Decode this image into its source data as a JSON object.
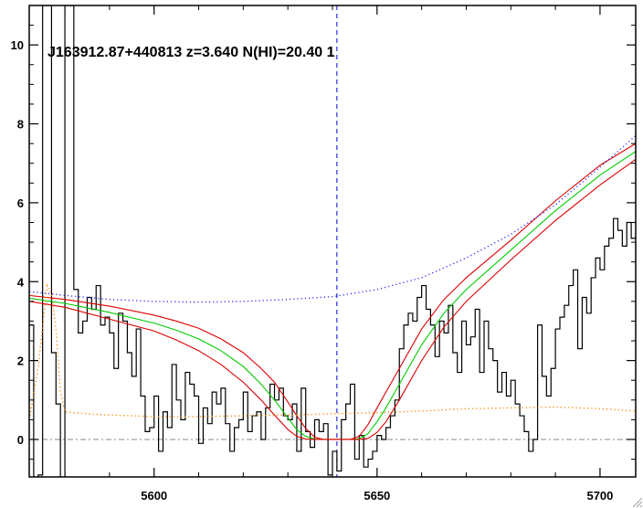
{
  "chart_data": {
    "type": "line",
    "title": "J163912.87+440813 z=3.640 N(HI)=20.40 1",
    "xlabel": "",
    "ylabel": "",
    "xlim": [
      5572,
      5708
    ],
    "ylim": [
      -0.95,
      11
    ],
    "x_ticks": [
      5600,
      5650,
      5700
    ],
    "x_tick_labels": [
      "5600",
      "5650",
      "5700"
    ],
    "y_ticks": [
      0,
      2,
      4,
      6,
      8,
      10
    ],
    "y_tick_labels": [
      "0",
      "2",
      "4",
      "6",
      "8",
      "10"
    ],
    "grid": false,
    "legend": "none",
    "vertical_marker_x": 5641,
    "zero_line_y": 0,
    "series": [
      {
        "style": "steps",
        "color": "#000000",
        "x": [
          5572,
          5573,
          5574,
          5575,
          5576,
          5577,
          5578,
          5579,
          5580,
          5581,
          5582,
          5583,
          5584,
          5585,
          5586,
          5587,
          5588,
          5589,
          5590,
          5591,
          5592,
          5593,
          5594,
          5595,
          5596,
          5597,
          5598,
          5599,
          5600,
          5601,
          5602,
          5603,
          5604,
          5605,
          5606,
          5607,
          5608,
          5609,
          5610,
          5611,
          5612,
          5613,
          5614,
          5615,
          5616,
          5617,
          5618,
          5619,
          5620,
          5621,
          5622,
          5623,
          5624,
          5625,
          5626,
          5627,
          5628,
          5629,
          5630,
          5631,
          5632,
          5633,
          5634,
          5635,
          5636,
          5637,
          5638,
          5639,
          5640,
          5641,
          5642,
          5643,
          5644,
          5645,
          5646,
          5647,
          5648,
          5649,
          5650,
          5651,
          5652,
          5653,
          5654,
          5655,
          5656,
          5657,
          5658,
          5659,
          5660,
          5661,
          5662,
          5663,
          5664,
          5665,
          5666,
          5667,
          5668,
          5669,
          5670,
          5671,
          5672,
          5673,
          5674,
          5675,
          5676,
          5677,
          5678,
          5679,
          5680,
          5681,
          5682,
          5683,
          5684,
          5685,
          5686,
          5687,
          5688,
          5689,
          5690,
          5691,
          5692,
          5693,
          5694,
          5695,
          5696,
          5697,
          5698,
          5699,
          5700,
          5701,
          5702,
          5703,
          5704,
          5705,
          5706,
          5707
        ],
        "y": [
          2.9,
          -1.0,
          -0.9,
          11,
          11,
          2.2,
          0.9,
          -1.0,
          11,
          11,
          3.8,
          2.7,
          3.0,
          3.6,
          3.3,
          3.9,
          2.9,
          3.1,
          2.7,
          1.8,
          3.2,
          3.0,
          2.2,
          1.6,
          2.8,
          1.1,
          0.2,
          0.3,
          1.1,
          -0.3,
          0.7,
          0.3,
          1.9,
          1.0,
          0.5,
          1.7,
          1.4,
          1.1,
          -0.1,
          0.8,
          0.4,
          1.2,
          0.9,
          1.3,
          0.4,
          -0.3,
          0.3,
          0.5,
          1.2,
          0.2,
          0.6,
          0.7,
          0.0,
          0.8,
          1.4,
          1.0,
          1.3,
          0.6,
          0.5,
          0.9,
          -0.3,
          1.3,
          0.2,
          -0.2,
          0.5,
          0.2,
          0.4,
          -0.9,
          -0.3,
          -0.8,
          0.5,
          0.9,
          1.4,
          -0.5,
          0.1,
          -0.7,
          -0.5,
          -0.3,
          0.1,
          0.0,
          0.3,
          0.6,
          1.0,
          2.3,
          2.9,
          3.2,
          3.0,
          3.6,
          3.9,
          3.3,
          2.9,
          2.1,
          3.0,
          2.7,
          3.4,
          2.2,
          1.7,
          3.0,
          2.4,
          2.6,
          3.3,
          1.7,
          3.0,
          2.3,
          2.0,
          1.2,
          1.7,
          1.1,
          1.5,
          0.9,
          0.6,
          0.2,
          -0.3,
          0.0,
          2.9,
          1.6,
          1.1,
          1.8,
          2.8,
          3.1,
          3.4,
          3.9,
          4.3,
          2.3,
          3.6,
          3.2,
          4.1,
          4.6,
          4.3,
          4.9,
          5.1,
          5.6,
          5.3,
          4.9,
          5.5,
          5.1
        ]
      },
      {
        "style": "solid",
        "color": "#00cc00",
        "x": [
          5572,
          5580,
          5590,
          5600,
          5605,
          5610,
          5615,
          5620,
          5624,
          5627,
          5630,
          5632,
          5634,
          5636,
          5638,
          5640,
          5642,
          5644,
          5646,
          5648,
          5650,
          5652,
          5655,
          5660,
          5665,
          5670,
          5680,
          5690,
          5700,
          5708
        ],
        "y": [
          3.58,
          3.45,
          3.22,
          2.95,
          2.77,
          2.55,
          2.25,
          1.85,
          1.4,
          1.0,
          0.55,
          0.25,
          0.08,
          0.01,
          0.0,
          0.0,
          0.0,
          0.0,
          0.02,
          0.15,
          0.45,
          0.8,
          1.4,
          2.4,
          3.2,
          3.8,
          4.8,
          5.8,
          6.7,
          7.3
        ]
      },
      {
        "style": "solid",
        "color": "#dd0000",
        "x": [
          5572,
          5580,
          5590,
          5600,
          5605,
          5610,
          5615,
          5620,
          5624,
          5627,
          5630,
          5632,
          5634,
          5636,
          5638,
          5640,
          5642,
          5644,
          5646,
          5648,
          5650,
          5652,
          5655,
          5660,
          5665,
          5670,
          5680,
          5690,
          5700,
          5708
        ],
        "y": [
          3.65,
          3.55,
          3.38,
          3.15,
          3.0,
          2.82,
          2.55,
          2.2,
          1.8,
          1.45,
          0.95,
          0.6,
          0.28,
          0.06,
          0.0,
          0.0,
          0.0,
          0.0,
          0.08,
          0.38,
          0.8,
          1.2,
          1.8,
          2.8,
          3.55,
          4.1,
          5.05,
          6.05,
          6.95,
          7.5
        ]
      },
      {
        "style": "solid",
        "color": "#dd0000",
        "x": [
          5572,
          5580,
          5590,
          5600,
          5605,
          5610,
          5615,
          5620,
          5624,
          5627,
          5630,
          5632,
          5634,
          5636,
          5638,
          5640,
          5642,
          5644,
          5646,
          5648,
          5650,
          5652,
          5655,
          5660,
          5665,
          5670,
          5680,
          5690,
          5700,
          5708
        ],
        "y": [
          3.5,
          3.35,
          3.05,
          2.75,
          2.52,
          2.25,
          1.9,
          1.45,
          1.0,
          0.62,
          0.25,
          0.08,
          0.01,
          0.0,
          0.0,
          0.0,
          0.0,
          0.0,
          0.0,
          0.03,
          0.18,
          0.45,
          1.0,
          2.0,
          2.85,
          3.5,
          4.55,
          5.55,
          6.45,
          7.1
        ]
      },
      {
        "style": "dotted",
        "color": "#3333ff",
        "x": [
          5572,
          5580,
          5590,
          5600,
          5610,
          5620,
          5630,
          5640,
          5650,
          5660,
          5670,
          5680,
          5690,
          5700,
          5708
        ],
        "y": [
          3.75,
          3.65,
          3.55,
          3.5,
          3.48,
          3.5,
          3.55,
          3.62,
          3.8,
          4.1,
          4.6,
          5.2,
          5.95,
          6.9,
          7.7
        ]
      },
      {
        "style": "dotted",
        "color": "#ff8800",
        "x": [
          5572,
          5574,
          5576,
          5577,
          5578,
          5579,
          5580,
          5585,
          5590,
          5600,
          5610,
          5620,
          5630,
          5640,
          5650,
          5660,
          5670,
          5680,
          5690,
          5700,
          5708
        ],
        "y": [
          0.5,
          1.8,
          3.9,
          3.7,
          2.8,
          1.2,
          0.7,
          0.65,
          0.62,
          0.58,
          0.58,
          0.6,
          0.62,
          0.65,
          0.68,
          0.72,
          0.78,
          0.8,
          0.82,
          0.78,
          0.72
        ]
      }
    ]
  }
}
